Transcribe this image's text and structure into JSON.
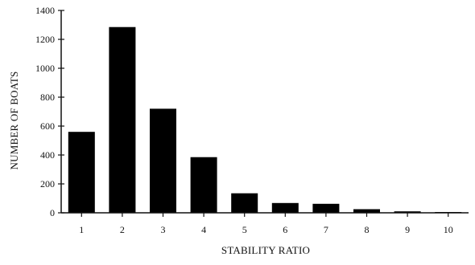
{
  "chart_data": {
    "type": "bar",
    "title": "",
    "xlabel": "STABILITY RATIO",
    "ylabel": "NUMBER OF BOATS",
    "categories": [
      "1",
      "2",
      "3",
      "4",
      "5",
      "6",
      "7",
      "8",
      "9",
      "10"
    ],
    "values": [
      560,
      1285,
      720,
      385,
      135,
      68,
      62,
      25,
      10,
      3
    ],
    "ylim": [
      0,
      1400
    ],
    "yticks": [
      "0",
      "200",
      "400",
      "600",
      "800",
      "1000",
      "1200",
      "1400"
    ],
    "grid": false,
    "legend": "none",
    "bar_color": "#000000"
  }
}
